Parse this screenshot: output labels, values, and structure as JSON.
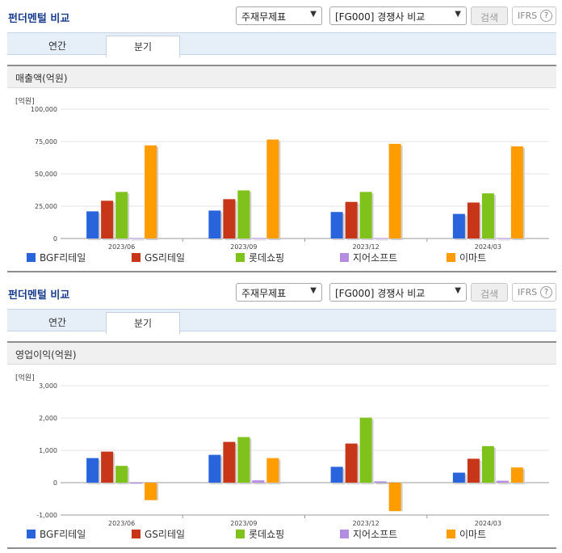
{
  "panels": [
    {
      "title": "펀더멘털 비교",
      "select_statement": "주재무제표",
      "select_peer": "[FG000] 경쟁사 비교",
      "search_label": "검색",
      "ifrs_label": "IFRS",
      "ifrs_help": "?",
      "tabs": [
        "연간",
        "분기"
      ],
      "active_tab": "분기",
      "subtitle": "매출액(억원)",
      "unit": "[억원]"
    },
    {
      "title": "펀더멘털 비교",
      "select_statement": "주재무제표",
      "select_peer": "[FG000] 경쟁사 비교",
      "search_label": "검색",
      "ifrs_label": "IFRS",
      "ifrs_help": "?",
      "tabs": [
        "연간",
        "분기"
      ],
      "active_tab": "분기",
      "subtitle": "영업이익(억원)",
      "unit": "[억원]"
    }
  ],
  "legend_colors": [
    "#2a64dc",
    "#c8361a",
    "#80c21c",
    "#b48ce0",
    "#ff9c00"
  ],
  "chart_data": [
    {
      "type": "bar",
      "categories": [
        "2023/06",
        "2023/09",
        "2023/12",
        "2024/03"
      ],
      "ylim": [
        0,
        100000
      ],
      "yticks": [
        "0",
        "25,000",
        "50,000",
        "75,000",
        "100,000"
      ],
      "ytick_values": [
        0,
        25000,
        50000,
        75000,
        100000
      ],
      "grid": true,
      "legend": "bottom",
      "series": [
        {
          "name": "BGF리테일",
          "values": [
            21000,
            21600,
            20500,
            19000
          ]
        },
        {
          "name": "GS리테일",
          "values": [
            29200,
            30400,
            28300,
            27800
          ]
        },
        {
          "name": "롯데쇼핑",
          "values": [
            36000,
            37200,
            36000,
            34900
          ]
        },
        {
          "name": "지어소프트",
          "values": [
            400,
            400,
            400,
            400
          ]
        },
        {
          "name": "이마트",
          "values": [
            72000,
            76500,
            73200,
            71200
          ]
        }
      ]
    },
    {
      "type": "bar",
      "categories": [
        "2023/06",
        "2023/09",
        "2023/12",
        "2024/03"
      ],
      "ylim": [
        -1000,
        3000
      ],
      "yticks": [
        "-1,000",
        "0",
        "1,000",
        "2,000",
        "3,000"
      ],
      "ytick_values": [
        -1000,
        0,
        1000,
        2000,
        3000
      ],
      "grid": true,
      "legend": "bottom",
      "series": [
        {
          "name": "BGF리테일",
          "values": [
            760,
            860,
            490,
            310
          ]
        },
        {
          "name": "GS리테일",
          "values": [
            960,
            1260,
            1210,
            740
          ]
        },
        {
          "name": "롯데쇼핑",
          "values": [
            520,
            1410,
            2010,
            1130
          ]
        },
        {
          "name": "지어소프트",
          "values": [
            -30,
            70,
            40,
            60
          ]
        },
        {
          "name": "이마트",
          "values": [
            -540,
            760,
            -880,
            470
          ]
        }
      ]
    }
  ]
}
